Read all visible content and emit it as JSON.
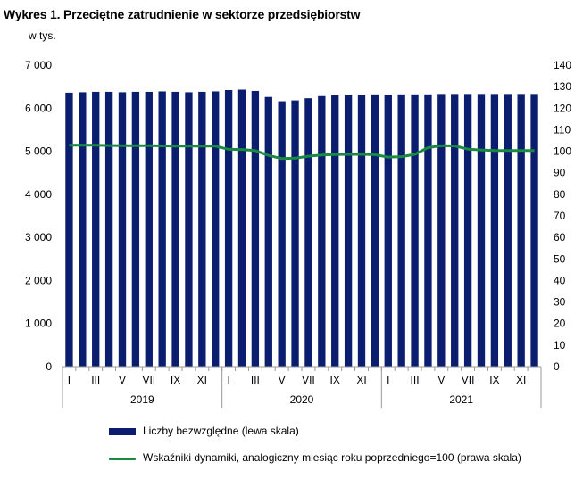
{
  "title": "Wykres 1. Przeciętne zatrudnienie w sektorze przedsiębiorstw",
  "unit_label": "w tys.",
  "colors": {
    "bars": "#0a1d6e",
    "line": "#1a8a42",
    "axis": "#999999"
  },
  "chart_data": {
    "type": "bar+line",
    "left_axis": {
      "min": 0,
      "max": 7000,
      "step": 1000,
      "ticks": [
        "0",
        "1 000",
        "2 000",
        "3 000",
        "4 000",
        "5 000",
        "6 000",
        "7 000"
      ]
    },
    "right_axis": {
      "min": 0,
      "max": 140,
      "step": 10,
      "ticks": [
        "0",
        "10",
        "20",
        "30",
        "40",
        "50",
        "60",
        "70",
        "80",
        "90",
        "100",
        "110",
        "120",
        "130",
        "140"
      ]
    },
    "month_labels": [
      "I",
      "III",
      "V",
      "VII",
      "IX",
      "XI",
      "I",
      "III",
      "V",
      "VII",
      "IX",
      "XI",
      "I",
      "III",
      "V",
      "VII",
      "IX",
      "XI"
    ],
    "years": [
      "2019",
      "2020",
      "2021"
    ],
    "series": [
      {
        "name": "Liczby bezwzględne (lewa skala)",
        "axis": "left",
        "kind": "bar",
        "values": [
          6360,
          6370,
          6380,
          6380,
          6370,
          6380,
          6380,
          6390,
          6380,
          6370,
          6380,
          6390,
          6420,
          6430,
          6400,
          6260,
          6160,
          6180,
          6230,
          6280,
          6300,
          6310,
          6310,
          6320,
          6310,
          6320,
          6320,
          6320,
          6330,
          6330,
          6330,
          6330,
          6330,
          6330,
          6330,
          6330
        ]
      },
      {
        "name": "Wskaźniki dynamiki, analogiczny miesiąc roku poprzedniego=100 (prawa skala)",
        "axis": "right",
        "kind": "line",
        "values": [
          102.8,
          102.9,
          102.8,
          102.7,
          102.6,
          102.6,
          102.6,
          102.5,
          102.4,
          102.4,
          102.4,
          102.4,
          100.9,
          100.8,
          100.3,
          98.1,
          96.6,
          96.8,
          97.7,
          98.3,
          98.5,
          98.6,
          98.6,
          98.4,
          97.3,
          97.5,
          98.6,
          101.7,
          102.6,
          102.5,
          101.0,
          100.6,
          100.3,
          100.3,
          100.3,
          100.3
        ]
      }
    ]
  }
}
